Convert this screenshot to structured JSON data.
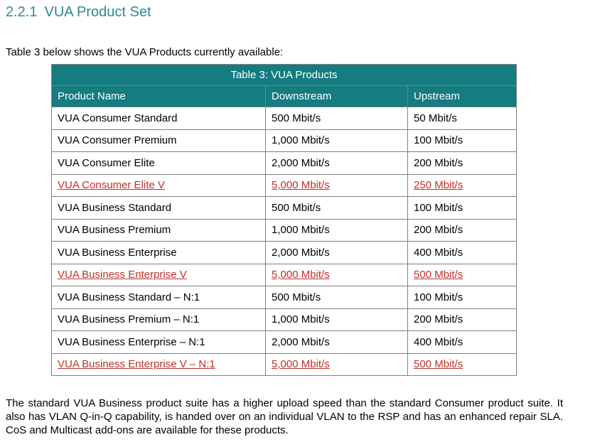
{
  "section": {
    "number": "2.2.1",
    "title": "VUA Product Set"
  },
  "intro": "Table 3 below shows the VUA Products currently available:",
  "table": {
    "caption": "Table 3: VUA Products",
    "columns": [
      "Product Name",
      "Downstream",
      "Upstream"
    ],
    "rows": [
      {
        "name": "VUA Consumer Standard",
        "down": "500 Mbit/s",
        "up": "50 Mbit/s",
        "highlight": false
      },
      {
        "name": "VUA Consumer Premium",
        "down": "1,000 Mbit/s",
        "up": "100 Mbit/s",
        "highlight": false
      },
      {
        "name": "VUA Consumer Elite",
        "down": "2,000 Mbit/s",
        "up": "200 Mbit/s",
        "highlight": false
      },
      {
        "name": "VUA Consumer Elite V",
        "down": "5,000 Mbit/s",
        "up": "250 Mbit/s",
        "highlight": true
      },
      {
        "name": "VUA Business Standard",
        "down": "500 Mbit/s",
        "up": "100 Mbit/s",
        "highlight": false
      },
      {
        "name": "VUA Business Premium",
        "down": "1,000 Mbit/s",
        "up": "200 Mbit/s",
        "highlight": false
      },
      {
        "name": "VUA Business Enterprise",
        "down": "2,000 Mbit/s",
        "up": "400 Mbit/s",
        "highlight": false
      },
      {
        "name": "VUA Business Enterprise V",
        "down": "5,000 Mbit/s",
        "up": "500 Mbit/s",
        "highlight": true
      },
      {
        "name": "VUA Business Standard – N:1",
        "down": "500 Mbit/s",
        "up": "100 Mbit/s",
        "highlight": false
      },
      {
        "name": "VUA Business Premium – N:1",
        "down": "1,000 Mbit/s",
        "up": "200 Mbit/s",
        "highlight": false
      },
      {
        "name": "VUA Business Enterprise – N:1",
        "down": "2,000 Mbit/s",
        "up": "400 Mbit/s",
        "highlight": false
      },
      {
        "name": "VUA Business Enterprise V – N:1",
        "down": "5,000 Mbit/s",
        "up": "500 Mbit/s",
        "highlight": true
      }
    ]
  },
  "paragraph": "The standard VUA Business product suite has a higher upload speed than the standard Consumer product suite. It also has VLAN Q-in-Q capability, is handed over on an individual VLAN to the RSP and has an enhanced repair SLA. CoS and Multicast add-ons are available for these products.",
  "colors": {
    "heading": "#2a8a94",
    "table_header": "#157c80",
    "highlight_text": "#c0302b"
  }
}
